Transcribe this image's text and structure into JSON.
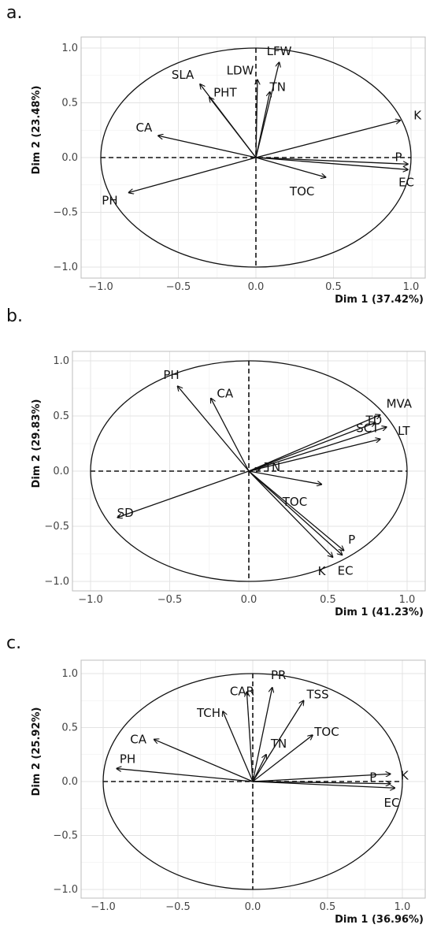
{
  "chart_data": [
    {
      "type": "scatter",
      "panel_label": "a.",
      "xlabel": "Dim 1 (37.42%)",
      "ylabel": "Dim 2 (23.48%)",
      "xlim": [
        -1.0,
        1.0
      ],
      "ylim": [
        -1.0,
        1.0
      ],
      "x_ticks": [
        "−1.0",
        "−0.5",
        "0.0",
        "0.5",
        "1.0"
      ],
      "y_ticks": [
        "1.0",
        "0.5",
        "0.0",
        "−0.5",
        "−1.0"
      ],
      "grid": true,
      "correlation_circle": true,
      "variables": [
        {
          "name": "LFW",
          "x": 0.15,
          "y": 0.87
        },
        {
          "name": "LDW",
          "x": 0.01,
          "y": 0.71
        },
        {
          "name": "TN",
          "x": 0.09,
          "y": 0.6
        },
        {
          "name": "SLA",
          "x": -0.36,
          "y": 0.67
        },
        {
          "name": "PHT",
          "x": -0.3,
          "y": 0.55
        },
        {
          "name": "CA",
          "x": -0.63,
          "y": 0.2
        },
        {
          "name": "K",
          "x": 0.93,
          "y": 0.34
        },
        {
          "name": "P",
          "x": 0.98,
          "y": -0.06
        },
        {
          "name": "EC",
          "x": 0.98,
          "y": -0.11
        },
        {
          "name": "TOC",
          "x": 0.45,
          "y": -0.18
        },
        {
          "name": "PH",
          "x": -0.82,
          "y": -0.32
        }
      ]
    },
    {
      "type": "scatter",
      "panel_label": "b.",
      "xlabel": "Dim 1 (41.23%)",
      "ylabel": "Dim 2 (29.83%)",
      "xlim": [
        -1.0,
        1.0
      ],
      "ylim": [
        -1.0,
        1.0
      ],
      "x_ticks": [
        "−1.0",
        "−0.5",
        "0.0",
        "0.5",
        "1.0"
      ],
      "y_ticks": [
        "1.0",
        "0.5",
        "0.0",
        "−0.5",
        "−1.0"
      ],
      "grid": true,
      "correlation_circle": true,
      "variables": [
        {
          "name": "PH",
          "x": -0.45,
          "y": 0.77
        },
        {
          "name": "CA",
          "x": -0.24,
          "y": 0.66
        },
        {
          "name": "MVA",
          "x": 0.83,
          "y": 0.51
        },
        {
          "name": "TD",
          "x": 0.8,
          "y": 0.44
        },
        {
          "name": "LT",
          "x": 0.87,
          "y": 0.4
        },
        {
          "name": "SCT",
          "x": 0.83,
          "y": 0.29
        },
        {
          "name": "TN",
          "x": 0.07,
          "y": 0.02
        },
        {
          "name": "TOC",
          "x": 0.46,
          "y": -0.12
        },
        {
          "name": "SD",
          "x": -0.83,
          "y": -0.42
        },
        {
          "name": "P",
          "x": 0.6,
          "y": -0.72
        },
        {
          "name": "EC",
          "x": 0.59,
          "y": -0.76
        },
        {
          "name": "K",
          "x": 0.53,
          "y": -0.78
        }
      ]
    },
    {
      "type": "scatter",
      "panel_label": "c.",
      "xlabel": "Dim 1 (36.96%)",
      "ylabel": "Dim 2 (25.92%)",
      "xlim": [
        -1.0,
        1.0
      ],
      "ylim": [
        -1.0,
        1.0
      ],
      "x_ticks": [
        "−1.0",
        "−0.5",
        "0.0",
        "0.5",
        "1.0"
      ],
      "y_ticks": [
        "1.0",
        "0.5",
        "0.0",
        "−0.5",
        "−1.0"
      ],
      "grid": true,
      "correlation_circle": true,
      "variables": [
        {
          "name": "PR",
          "x": 0.13,
          "y": 0.87
        },
        {
          "name": "CAR",
          "x": -0.04,
          "y": 0.83
        },
        {
          "name": "TSS",
          "x": 0.34,
          "y": 0.75
        },
        {
          "name": "TCH",
          "x": -0.2,
          "y": 0.65
        },
        {
          "name": "TN",
          "x": 0.09,
          "y": 0.25
        },
        {
          "name": "TOC",
          "x": 0.4,
          "y": 0.43
        },
        {
          "name": "CA",
          "x": -0.66,
          "y": 0.39
        },
        {
          "name": "PH",
          "x": -0.91,
          "y": 0.12
        },
        {
          "name": "K",
          "x": 0.92,
          "y": 0.07
        },
        {
          "name": "P",
          "x": 0.92,
          "y": -0.02
        },
        {
          "name": "EC",
          "x": 0.95,
          "y": -0.06
        }
      ]
    }
  ]
}
